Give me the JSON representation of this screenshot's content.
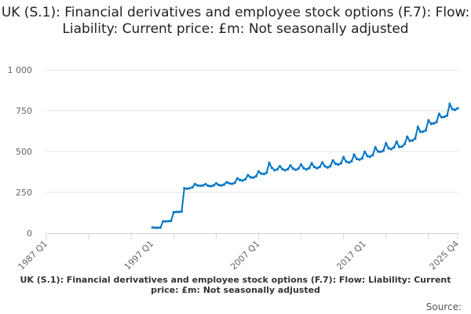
{
  "chart_data": {
    "type": "line",
    "title": "UK (S.1): Financial derivatives and employee stock options (F.7): Flow: Liability: Current price: £m: Not seasonally adjusted",
    "footer": "UK (S.1): Financial derivatives and employee stock options (F.7): Flow: Liability: Current price: £m: Not seasonally adjusted",
    "source_label": "Source:",
    "xlabel": "",
    "ylabel": "",
    "x_start": "1987 Q1",
    "x_end": "2025 Q4",
    "x_tick_labels": [
      "1987 Q1",
      "1997 Q1",
      "2007 Q1",
      "2017 Q1",
      "2025 Q4"
    ],
    "y_ticks": [
      0,
      250,
      500,
      750,
      1000
    ],
    "y_tick_labels": [
      "0",
      "250",
      "500",
      "750",
      "1 000"
    ],
    "ylim": [
      0,
      1000
    ],
    "grid": true,
    "line_color": "#0075c4",
    "series_start": "1997 Q1",
    "values": [
      35,
      33,
      33,
      34,
      72,
      72,
      73,
      75,
      128,
      130,
      130,
      132,
      275,
      272,
      275,
      280,
      300,
      292,
      290,
      292,
      300,
      290,
      288,
      292,
      305,
      295,
      292,
      298,
      312,
      305,
      302,
      308,
      335,
      325,
      322,
      330,
      355,
      342,
      340,
      348,
      378,
      365,
      362,
      370,
      430,
      400,
      385,
      390,
      410,
      392,
      385,
      392,
      415,
      395,
      388,
      395,
      420,
      398,
      390,
      398,
      428,
      405,
      398,
      405,
      432,
      410,
      402,
      410,
      445,
      425,
      420,
      428,
      465,
      438,
      432,
      440,
      480,
      455,
      450,
      458,
      498,
      472,
      468,
      478,
      525,
      500,
      498,
      505,
      550,
      520,
      515,
      525,
      560,
      528,
      530,
      545,
      590,
      565,
      568,
      580,
      650,
      620,
      622,
      630,
      690,
      670,
      672,
      680,
      730,
      710,
      712,
      720,
      790,
      760,
      755,
      765
    ]
  }
}
